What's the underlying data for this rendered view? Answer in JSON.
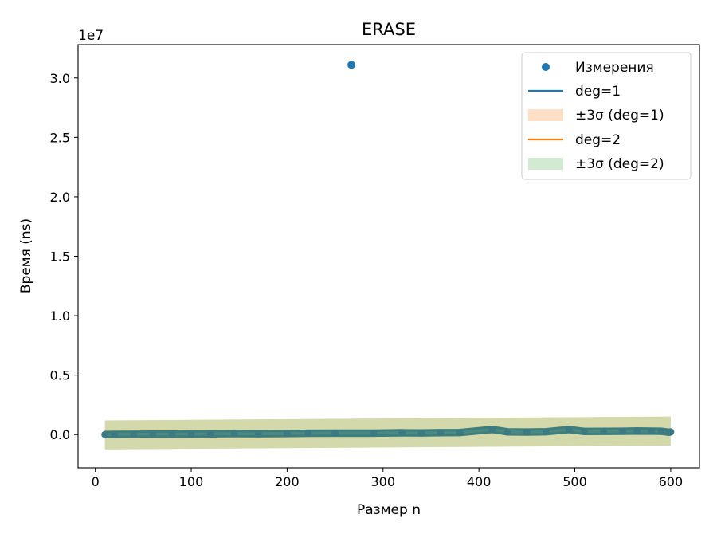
{
  "chart_data": {
    "type": "scatter",
    "title": "ERASE",
    "xlabel": "Размер n",
    "ylabel": "Время (ns)",
    "y_offset_label": "1e7",
    "xlim": [
      -18,
      630
    ],
    "ylim": [
      -2800000,
      32800000
    ],
    "x_ticks": [
      0,
      100,
      200,
      300,
      400,
      500,
      600
    ],
    "x_tick_labels": [
      "0",
      "100",
      "200",
      "300",
      "400",
      "500",
      "600"
    ],
    "y_ticks": [
      0,
      5000000,
      10000000,
      15000000,
      20000000,
      25000000,
      30000000
    ],
    "y_tick_labels": [
      "0.0",
      "0.5",
      "1.0",
      "1.5",
      "2.0",
      "2.5",
      "3.0"
    ],
    "grid": false,
    "legend_position": "top-right",
    "legend": [
      "Измерения",
      "deg=1",
      "±3σ (deg=1)",
      "deg=2",
      "±3σ (deg=2)"
    ],
    "colors": {
      "measurements": "#1f77b4",
      "deg1_line": "#1f77b4",
      "deg1_band": "#ffdfc5",
      "deg2_line": "#ff7f0e",
      "deg2_band": "#d2ead2",
      "overlap_band": "#d4d9ab"
    },
    "series": [
      {
        "name": "Измерения",
        "kind": "scatter",
        "points": [
          [
            10,
            0
          ],
          [
            20,
            20000
          ],
          [
            40,
            30000
          ],
          [
            60,
            40000
          ],
          [
            80,
            40000
          ],
          [
            100,
            50000
          ],
          [
            120,
            60000
          ],
          [
            145,
            80000
          ],
          [
            170,
            70000
          ],
          [
            200,
            90000
          ],
          [
            222,
            110000
          ],
          [
            250,
            120000
          ],
          [
            267,
            31100000
          ],
          [
            290,
            120000
          ],
          [
            320,
            150000
          ],
          [
            340,
            140000
          ],
          [
            360,
            160000
          ],
          [
            380,
            170000
          ],
          [
            414,
            430000
          ],
          [
            430,
            230000
          ],
          [
            450,
            210000
          ],
          [
            470,
            240000
          ],
          [
            494,
            420000
          ],
          [
            510,
            260000
          ],
          [
            530,
            270000
          ],
          [
            550,
            280000
          ],
          [
            565,
            300000
          ],
          [
            580,
            290000
          ],
          [
            590,
            280000
          ],
          [
            598,
            200000
          ],
          [
            600,
            220000
          ]
        ]
      },
      {
        "name": "deg=1",
        "kind": "line",
        "x": [
          10,
          600
        ],
        "y": [
          -30000,
          300000
        ]
      },
      {
        "name": "±3σ (deg=1)",
        "kind": "band",
        "x": [
          10,
          600
        ],
        "lower": [
          -1250000,
          -920000
        ],
        "upper": [
          1190000,
          1520000
        ]
      },
      {
        "name": "deg=2",
        "kind": "line",
        "x": [
          10,
          600
        ],
        "y": [
          -20000,
          270000
        ]
      },
      {
        "name": "±3σ (deg=2)",
        "kind": "band",
        "x": [
          10,
          600
        ],
        "lower": [
          -1200000,
          -900000
        ],
        "upper": [
          1170000,
          1480000
        ]
      }
    ]
  }
}
